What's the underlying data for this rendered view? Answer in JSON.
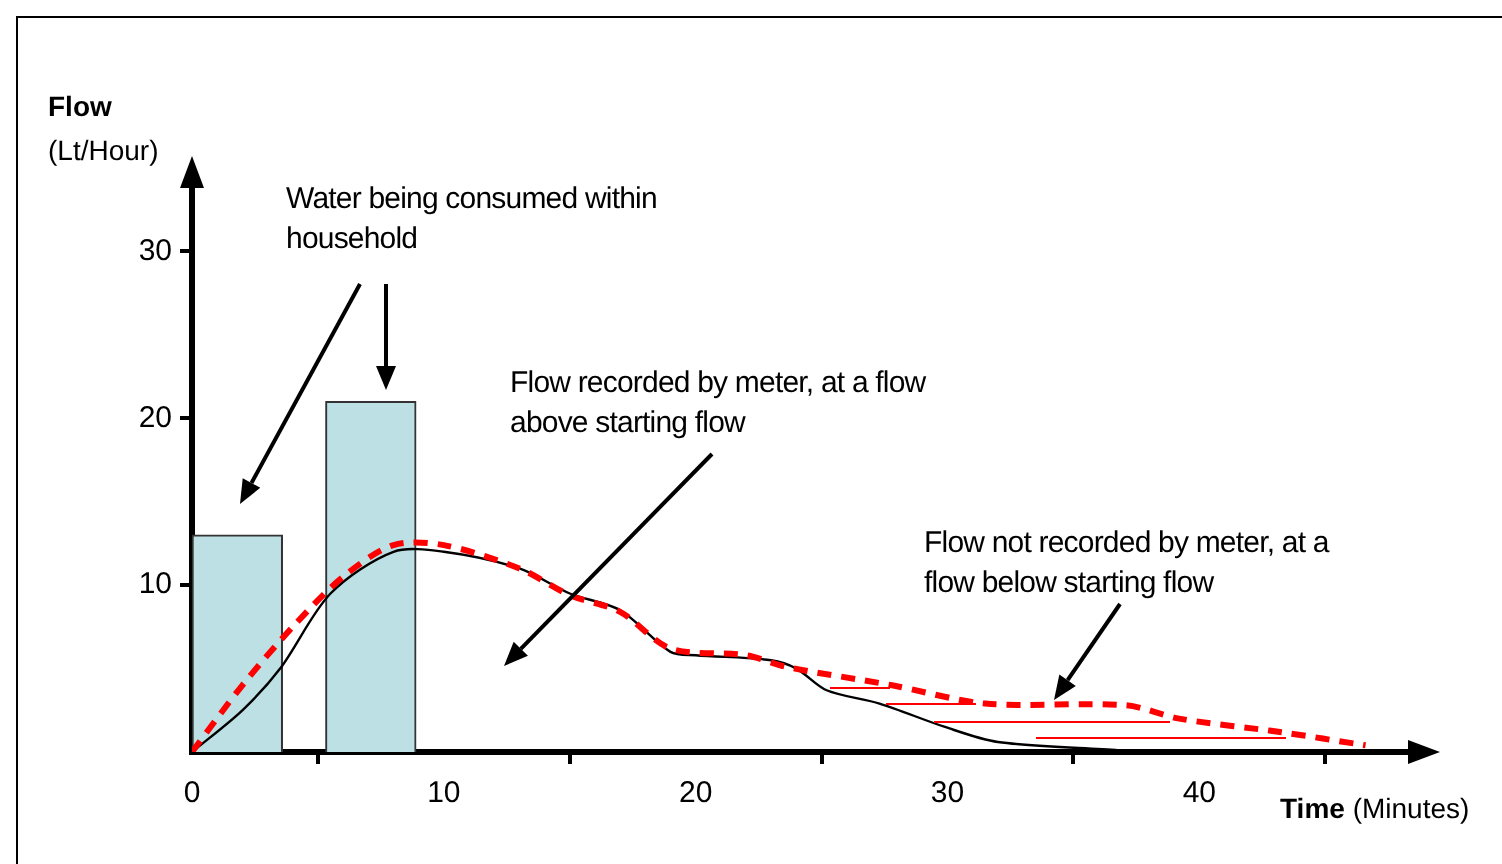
{
  "chart_data": {
    "type": "line",
    "xlabel": "Time (Minutes)",
    "ylabel": "Flow (Lt/Hour)",
    "xlim": [
      0,
      49
    ],
    "ylim": [
      0,
      35
    ],
    "xticks": [
      0,
      10,
      20,
      30,
      40
    ],
    "yticks": [
      10,
      20,
      30
    ],
    "grid": false,
    "legend": false,
    "marker": "none",
    "annotations": [
      "Water being consumed within household",
      "Flow recorded by meter, at a flow above starting flow",
      "Flow not recorded by meter, at a flow below starting flow"
    ],
    "series": [
      {
        "type": "bar",
        "x": [
          1.8,
          7.1
        ],
        "values": [
          13,
          21
        ],
        "color": "#bce0e3"
      },
      {
        "x": [
          0,
          2,
          3.5,
          5.5,
          8,
          10,
          13,
          15,
          17,
          19,
          20,
          23,
          24,
          25.2,
          27.3,
          29.9,
          32,
          36.8,
          37.5
        ],
        "values": [
          0,
          2.5,
          5,
          9.5,
          12,
          12,
          11,
          9.5,
          8.5,
          6,
          5.8,
          5.5,
          5,
          3.7,
          2.9,
          1.5,
          0.6,
          0.1,
          0
        ],
        "color": "#000000",
        "line_style": "solid"
      },
      {
        "x": [
          0,
          2,
          4,
          6,
          8,
          10,
          13,
          15,
          17,
          19,
          22,
          23.6,
          27.8,
          31.5,
          37.1,
          39.2,
          43.2,
          46.6
        ],
        "values": [
          0,
          4,
          7.5,
          10.5,
          12.4,
          12.4,
          11,
          9.4,
          8.4,
          6.2,
          5.8,
          5.1,
          4,
          2.9,
          2.8,
          2,
          1.2,
          0.4
        ],
        "color": "#ff0000",
        "line_style": "dashed"
      }
    ]
  }
}
